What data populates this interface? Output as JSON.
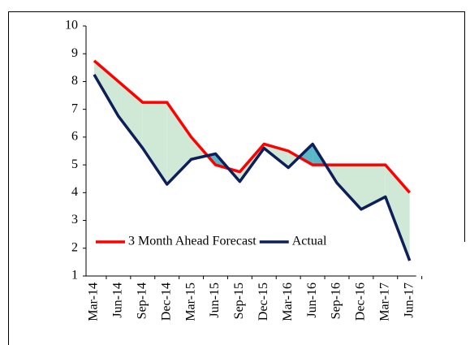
{
  "chart_data": {
    "type": "line",
    "categories": [
      "Mar-14",
      "Jun-14",
      "Sep-14",
      "Dec-14",
      "Mar-15",
      "Jun-15",
      "Sep-15",
      "Dec-15",
      "Mar-16",
      "Jun-16",
      "Sep-16",
      "Dec-16",
      "Mar-17",
      "Jun-17"
    ],
    "series": [
      {
        "name": "3 Month Ahead Forecast",
        "color": "#ff0000",
        "values": [
          8.75,
          8,
          7.25,
          7.25,
          6,
          5,
          4.75,
          5.75,
          5.5,
          5,
          5,
          5,
          5,
          4
        ]
      },
      {
        "name": "Actual",
        "color": "#0c1f5b",
        "values": [
          8.25,
          6.75,
          5.6,
          4.3,
          5.2,
          5.4,
          4.4,
          5.6,
          4.9,
          5.75,
          4.35,
          3.4,
          3.85,
          1.55
        ]
      }
    ],
    "fill_colors": [
      "#cfe9d6",
      "#5ab7c7"
    ],
    "ylim": [
      1,
      10
    ],
    "yticks": [
      1,
      2,
      3,
      4,
      5,
      6,
      7,
      8,
      9,
      10
    ],
    "legend": "lower left"
  }
}
